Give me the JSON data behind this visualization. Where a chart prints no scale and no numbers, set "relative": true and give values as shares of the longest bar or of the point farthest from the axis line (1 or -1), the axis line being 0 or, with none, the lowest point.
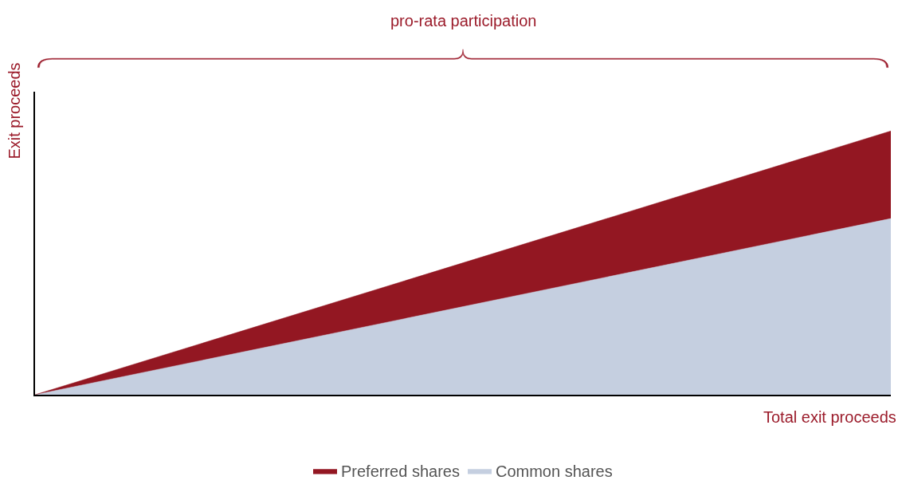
{
  "chart_data": {
    "type": "area",
    "relative": true,
    "stacked": true,
    "categories": [
      null,
      null
    ],
    "series": [
      {
        "name": "Common shares",
        "color": "#c5cfe0",
        "values": [
          0,
          0.668
        ]
      },
      {
        "name": "Preferred shares",
        "color": "#931722",
        "values": [
          0,
          0.332
        ]
      }
    ],
    "xlabel": "Total exit proceeds",
    "ylabel": "Exit proceeds",
    "annotations": [
      "pro-rata participation"
    ],
    "legend": "bottom"
  }
}
